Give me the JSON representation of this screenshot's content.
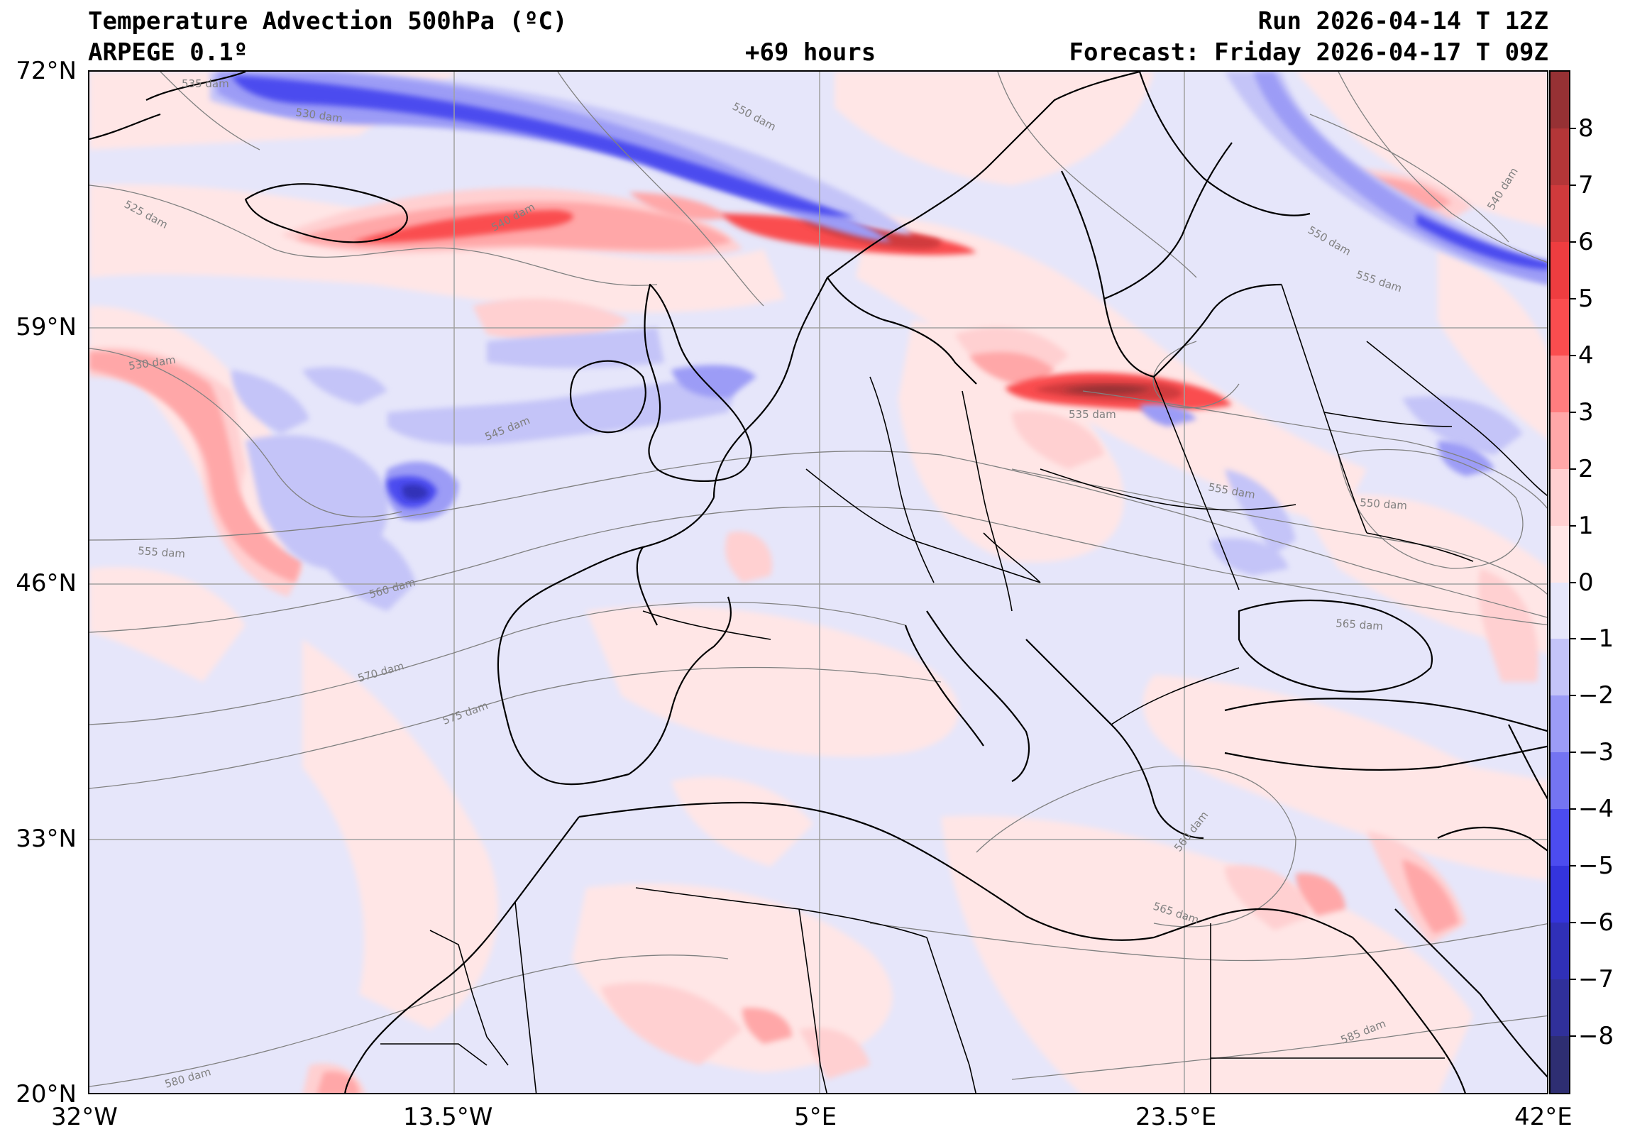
{
  "header": {
    "title": "Temperature Advection  500hPa (ºC)",
    "model": "ARPEGE 0.1º",
    "lead": "+69 hours",
    "run": "Run 2026-04-14 T 12Z",
    "forecast": "Forecast: Friday 2026-04-17 T 09Z"
  },
  "axes": {
    "lat_labels": [
      "72°N",
      "59°N",
      "46°N",
      "33°N",
      "20°N"
    ],
    "lon_labels": [
      "32°W",
      "13.5°W",
      "5°E",
      "23.5°E",
      "42°E"
    ]
  },
  "colorbar": {
    "labels": [
      "8",
      "7",
      "6",
      "5",
      "4",
      "3",
      "2",
      "1",
      "0",
      "−1",
      "−2",
      "−3",
      "−4",
      "−5",
      "−6",
      "−7",
      "−8"
    ],
    "colors": [
      "#963134",
      "#b33638",
      "#d03a3c",
      "#ee3d40",
      "#fa4d4f",
      "#ff7d7f",
      "#ffa7a8",
      "#ffd0d1",
      "#ffe6e6",
      "#e6e6fa",
      "#c4c4f8",
      "#9c9cf6",
      "#7474f2",
      "#4c4cef",
      "#3434dd",
      "#3030b8",
      "#30309a",
      "#2e2e72"
    ]
  },
  "contours": {
    "labels": [
      "535 dam",
      "530 dam",
      "550 dam",
      "525 dam",
      "540 dam",
      "530 dam",
      "545 dam",
      "555 dam",
      "560 dam",
      "570 dam",
      "575 dam",
      "580 dam",
      "555 dam",
      "550 dam",
      "565 dam",
      "540 dam",
      "550 dam",
      "555 dam",
      "560 dam",
      "565 dam",
      "585 dam",
      "535 dam"
    ]
  },
  "colors": {
    "frame": "#000000",
    "grid": "#a0a0a0",
    "contour": "#808080",
    "coast": "#000000"
  }
}
